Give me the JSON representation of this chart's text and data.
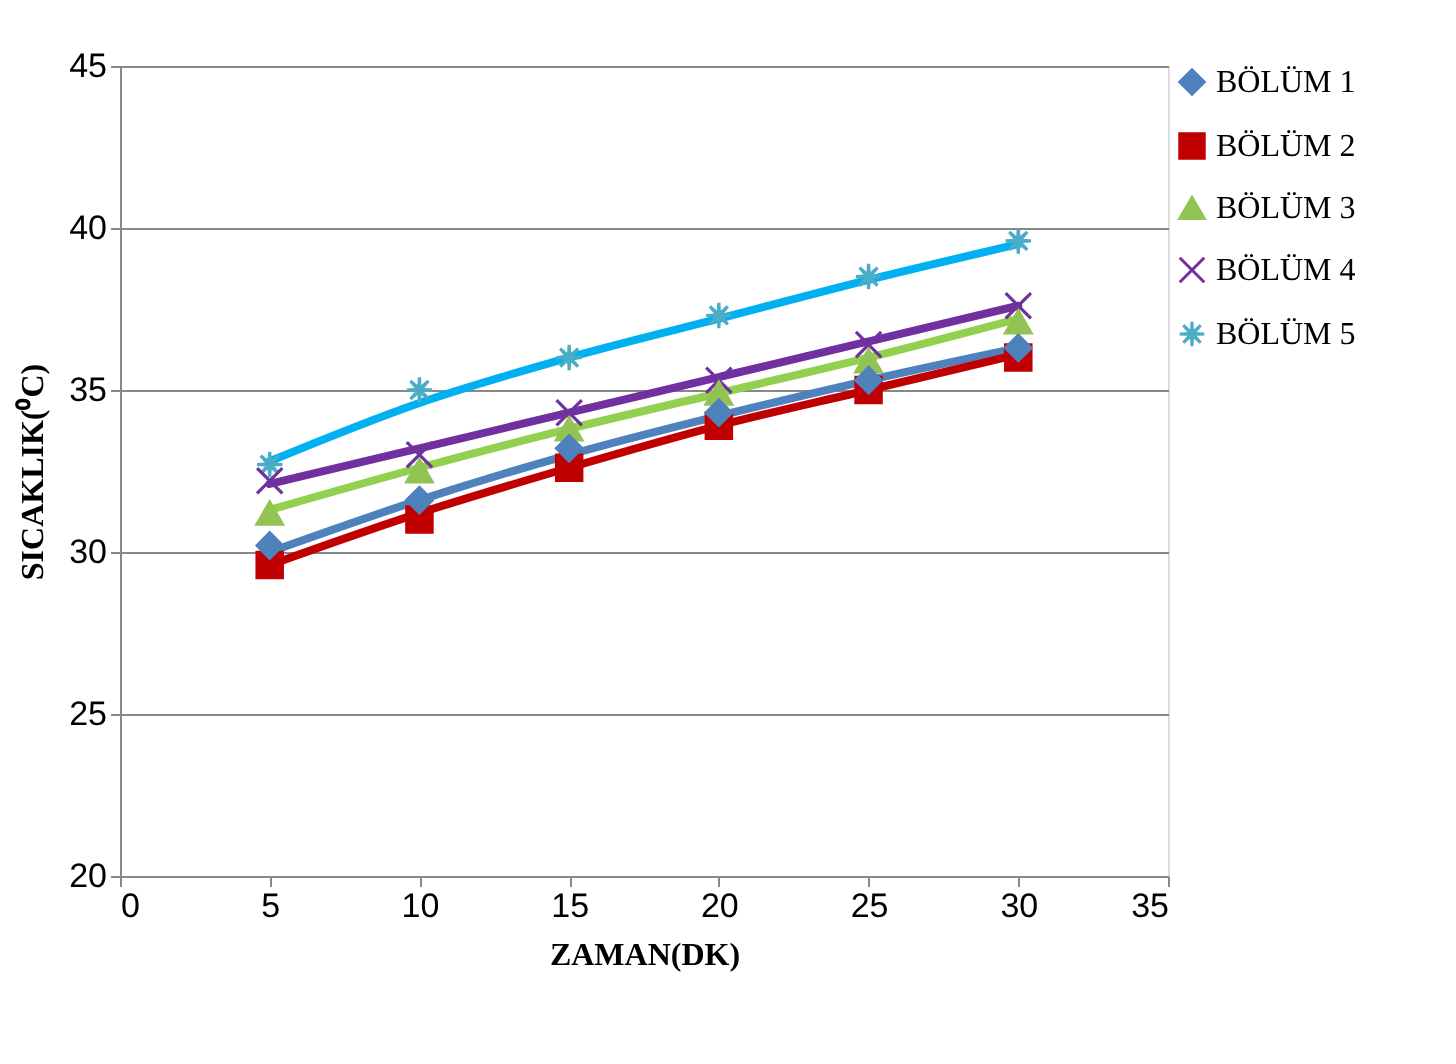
{
  "chart_data": {
    "type": "scatter",
    "xlabel": "ZAMAN(DK)",
    "ylabel": "SICAKLIK(⁰C)",
    "x": [
      5,
      10,
      15,
      20,
      25,
      30
    ],
    "series": [
      {
        "name": "BÖLÜM 1",
        "color": "#4f81bd",
        "marker": "diamond",
        "values": [
          30.2,
          31.6,
          33.2,
          34.3,
          35.3,
          36.3
        ]
      },
      {
        "name": "BÖLÜM 2",
        "color": "#c00000",
        "marker": "square",
        "values": [
          29.6,
          31.0,
          32.6,
          33.9,
          35.0,
          36.0
        ]
      },
      {
        "name": "BÖLÜM 3",
        "color": "#92c353",
        "marker": "triangle",
        "values": [
          31.2,
          32.5,
          33.8,
          34.9,
          35.9,
          37.1
        ]
      },
      {
        "name": "BÖLÜM 4",
        "color": "#7030a0",
        "marker": "cross",
        "values": [
          32.2,
          33.0,
          34.3,
          35.3,
          36.4,
          37.6
        ]
      },
      {
        "name": "BÖLÜM 5",
        "color": "#4bacc6",
        "marker": "star",
        "values": [
          32.7,
          35.0,
          36.0,
          37.3,
          38.5,
          39.6
        ]
      },
      {
        "type": "line",
        "color": "#4f81bd",
        "x": [
          5,
          10,
          15,
          20,
          25,
          30
        ],
        "values": [
          30.0,
          31.6,
          33.0,
          34.2,
          35.3,
          36.3
        ]
      },
      {
        "type": "line",
        "color": "#c00000",
        "x": [
          5,
          10,
          15,
          20,
          25,
          30
        ],
        "values": [
          29.6,
          31.2,
          32.6,
          33.9,
          35.0,
          36.1
        ]
      },
      {
        "type": "line",
        "color": "#92d050",
        "x": [
          5,
          10,
          15,
          20,
          25,
          30
        ],
        "values": [
          31.3,
          32.6,
          33.8,
          34.9,
          36.0,
          37.2
        ]
      },
      {
        "type": "line",
        "color": "#7030a0",
        "x": [
          5,
          10,
          15,
          20,
          25,
          30
        ],
        "values": [
          32.1,
          33.2,
          34.3,
          35.4,
          36.5,
          37.6
        ]
      },
      {
        "type": "line",
        "color": "#00b0f0",
        "x": [
          5,
          10,
          15,
          20,
          25,
          30
        ],
        "values": [
          32.8,
          34.6,
          36.0,
          37.2,
          38.4,
          39.5
        ]
      }
    ],
    "xlim": [
      0,
      35
    ],
    "xticks": [
      0,
      5,
      10,
      15,
      20,
      25,
      30,
      35
    ],
    "ylim": [
      20,
      45
    ],
    "yticks": [
      20,
      25,
      30,
      35,
      40,
      45
    ],
    "grid": "y",
    "legend": "right",
    "line_style": "solid"
  }
}
